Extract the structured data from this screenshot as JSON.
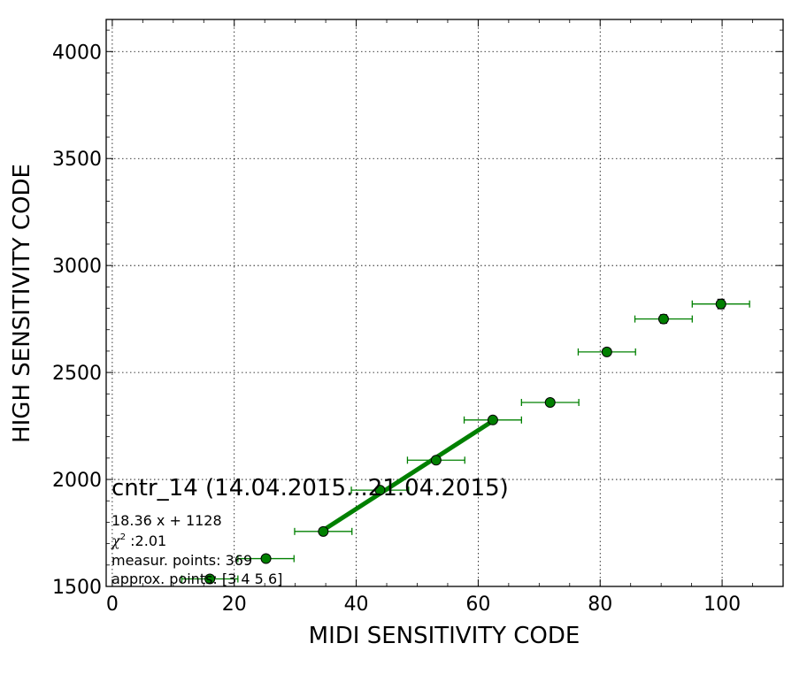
{
  "chart_data": {
    "type": "scatter",
    "title": "cntr_14 (14.04.2015...21.04.2015)",
    "xlabel": "MIDI SENSITIVITY CODE",
    "ylabel": "HIGH SENSITIVITY CODE",
    "xlim": [
      -1,
      110
    ],
    "ylim": [
      1500,
      4150
    ],
    "x_ticks": [
      0,
      20,
      40,
      60,
      80,
      100
    ],
    "y_ticks": [
      1500,
      2000,
      2500,
      3000,
      3500,
      4000
    ],
    "x_tick_labels": [
      "0",
      "20",
      "40",
      "60",
      "80",
      "100"
    ],
    "y_tick_labels": [
      "1500",
      "2000",
      "2500",
      "3000",
      "3500",
      "4000"
    ],
    "grid": true,
    "marker_color": "#008000",
    "line_color": "#008000",
    "points": [
      {
        "x": 16.0,
        "y": 1535,
        "xerr": 4.6,
        "yerr": 8
      },
      {
        "x": 25.2,
        "y": 1630,
        "xerr": 4.6,
        "yerr": 8
      },
      {
        "x": 34.6,
        "y": 1757,
        "xerr": 4.7,
        "yerr": 10
      },
      {
        "x": 43.9,
        "y": 1950,
        "xerr": 4.7,
        "yerr": 10
      },
      {
        "x": 53.1,
        "y": 2090,
        "xerr": 4.7,
        "yerr": 10
      },
      {
        "x": 62.4,
        "y": 2278,
        "xerr": 4.7,
        "yerr": 12
      },
      {
        "x": 71.8,
        "y": 2360,
        "xerr": 4.7,
        "yerr": 14
      },
      {
        "x": 81.1,
        "y": 2596,
        "xerr": 4.7,
        "yerr": 14
      },
      {
        "x": 90.4,
        "y": 2750,
        "xerr": 4.7,
        "yerr": 20
      },
      {
        "x": 99.8,
        "y": 2820,
        "xerr": 4.7,
        "yerr": 22
      }
    ],
    "fit": {
      "slope": 18.36,
      "intercept": 1128,
      "x_range": [
        34.6,
        62.4
      ]
    },
    "annotations": {
      "equation": "18.36 x + 1128",
      "chi2_symbol": "χ",
      "chi2_exp": "2",
      "chi2_value": " :2.01",
      "measur_points": "measur. points: 369",
      "approx_points": "approx. points: [3 4 5 6]"
    }
  }
}
